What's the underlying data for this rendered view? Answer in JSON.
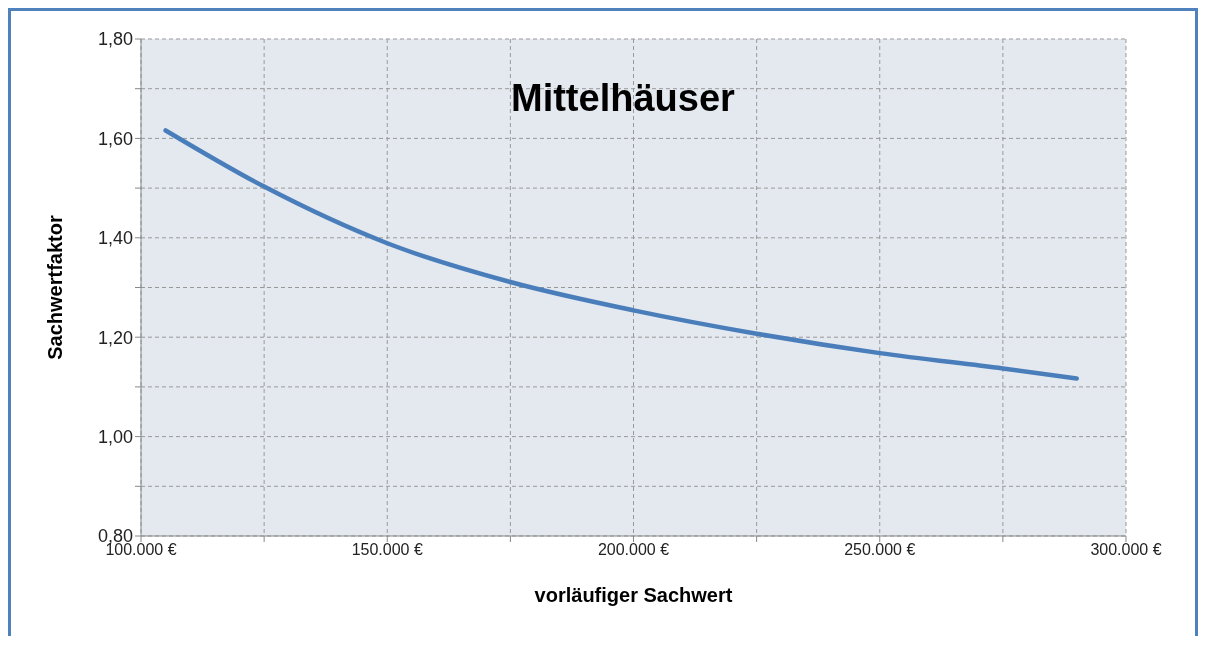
{
  "chart_data": {
    "type": "line",
    "title": "Mittelhäuser",
    "xlabel": "vorläufiger Sachwert",
    "ylabel": "Sachwertfaktor",
    "x": [
      105000,
      125000,
      150000,
      175000,
      200000,
      225000,
      250000,
      275000,
      290000
    ],
    "series": [
      {
        "color": "#4a7ebb",
        "values": [
          1.616,
          1.503,
          1.389,
          1.311,
          1.254,
          1.207,
          1.168,
          1.137,
          1.117
        ]
      }
    ],
    "xlim": [
      100000,
      300000
    ],
    "xticks": [
      {
        "value": 100000,
        "label": "100.000 €"
      },
      {
        "value": 125000,
        "label": null
      },
      {
        "value": 150000,
        "label": "150.000 €"
      },
      {
        "value": 175000,
        "label": null
      },
      {
        "value": 200000,
        "label": "200.000 €"
      },
      {
        "value": 225000,
        "label": null
      },
      {
        "value": 250000,
        "label": "250.000 €"
      },
      {
        "value": 275000,
        "label": null
      },
      {
        "value": 300000,
        "label": "300.000 €"
      }
    ],
    "ylim": [
      0.8,
      1.8
    ],
    "yticks": [
      {
        "value": 0.8,
        "label": "0,80"
      },
      {
        "value": 0.9,
        "label": null
      },
      {
        "value": 1.0,
        "label": "1,00"
      },
      {
        "value": 1.1,
        "label": null
      },
      {
        "value": 1.2,
        "label": "1,20"
      },
      {
        "value": 1.3,
        "label": null
      },
      {
        "value": 1.4,
        "label": "1,40"
      },
      {
        "value": 1.5,
        "label": null
      },
      {
        "value": 1.6,
        "label": "1,60"
      },
      {
        "value": 1.7,
        "label": null
      },
      {
        "value": 1.8,
        "label": "1,80"
      }
    ],
    "grid": true,
    "marker": "none",
    "line_style": "solid"
  }
}
